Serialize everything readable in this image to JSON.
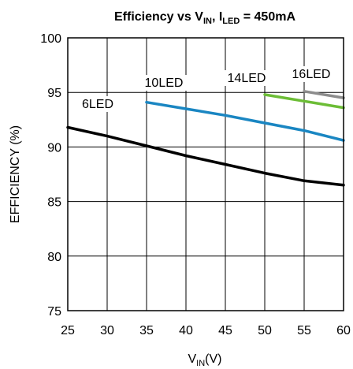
{
  "chart_data": {
    "type": "line",
    "title": {
      "main": "Efficiency vs V",
      "sub1": "IN",
      "mid": ", I",
      "sub2": "LED",
      "tail": " = 450mA"
    },
    "xlabel": {
      "main": "V",
      "sub": "IN",
      "tail": "(V)"
    },
    "ylabel": "EFFICIENCY (%)",
    "xlim": [
      25,
      60
    ],
    "ylim": [
      75,
      100
    ],
    "x_ticks": [
      "25",
      "30",
      "35",
      "40",
      "45",
      "50",
      "55",
      "60"
    ],
    "y_ticks": [
      "75",
      "80",
      "85",
      "90",
      "95",
      "100"
    ],
    "grid": true,
    "series": [
      {
        "name": "6LED",
        "color": "#000000",
        "x": [
          25,
          30,
          35,
          40,
          45,
          50,
          55,
          60
        ],
        "values": [
          91.8,
          91.0,
          90.1,
          89.2,
          88.4,
          87.6,
          86.9,
          86.5
        ]
      },
      {
        "name": "10LED",
        "color": "#1a86c2",
        "x": [
          35,
          40,
          45,
          50,
          55,
          60
        ],
        "values": [
          94.1,
          93.5,
          92.9,
          92.2,
          91.5,
          90.6
        ]
      },
      {
        "name": "14LED",
        "color": "#6cbd36",
        "x": [
          50,
          55,
          60
        ],
        "values": [
          94.8,
          94.2,
          93.6
        ]
      },
      {
        "name": "16LED",
        "color": "#8c8c8c",
        "x": [
          55,
          60
        ],
        "values": [
          95.1,
          94.5
        ]
      }
    ]
  }
}
